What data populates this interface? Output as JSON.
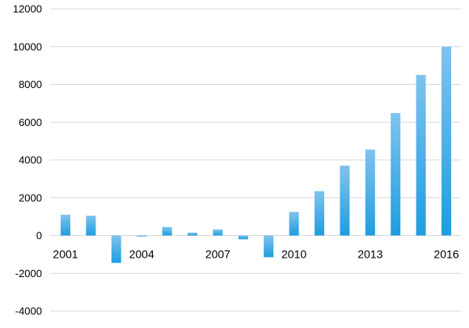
{
  "chart_data": {
    "type": "bar",
    "title": "",
    "xlabel": "",
    "ylabel": "",
    "ylim": [
      -4000,
      12000
    ],
    "yticks": [
      12000,
      10000,
      8000,
      6000,
      4000,
      2000,
      0,
      -2000,
      -4000
    ],
    "categories": [
      "2001",
      "2002",
      "2003",
      "2004",
      "2005",
      "2006",
      "2007",
      "2008",
      "2009",
      "2010",
      "2011",
      "2012",
      "2013",
      "2014",
      "2015",
      "2016"
    ],
    "xtick_labels": [
      "2001",
      "2004",
      "2007",
      "2010",
      "2013",
      "2016"
    ],
    "values": [
      1100,
      1050,
      -1450,
      -50,
      450,
      150,
      320,
      -200,
      -1150,
      1250,
      2350,
      3700,
      4550,
      6480,
      8500,
      10000
    ],
    "grid": true,
    "legend": "none",
    "colors": {
      "bar_top": "#7fc3ee",
      "bar_bottom": "#1e9de0",
      "grid": "#d9d9d9"
    }
  }
}
